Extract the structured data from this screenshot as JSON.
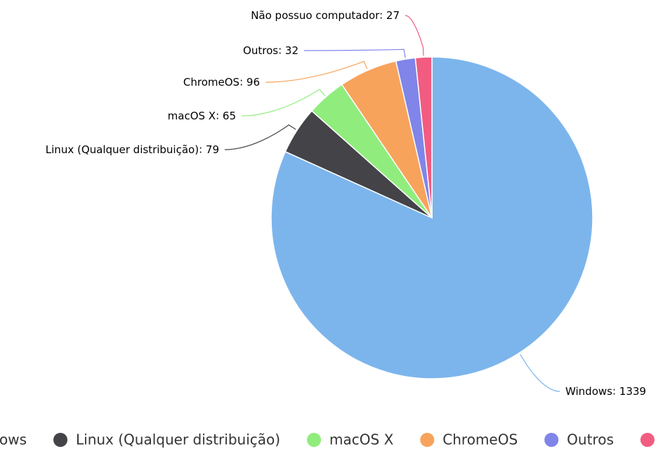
{
  "chart_data": {
    "type": "pie",
    "categories": [
      "Windows",
      "Linux (Qualquer distribuição)",
      "macOS X",
      "ChromeOS",
      "Outros",
      "Não possuo computador"
    ],
    "values": [
      1339,
      79,
      65,
      96,
      32,
      27
    ],
    "colors": [
      "#7cb5ec",
      "#434348",
      "#90ed7d",
      "#f7a35c",
      "#8085e9",
      "#f15c80"
    ],
    "legend": "bottom"
  }
}
